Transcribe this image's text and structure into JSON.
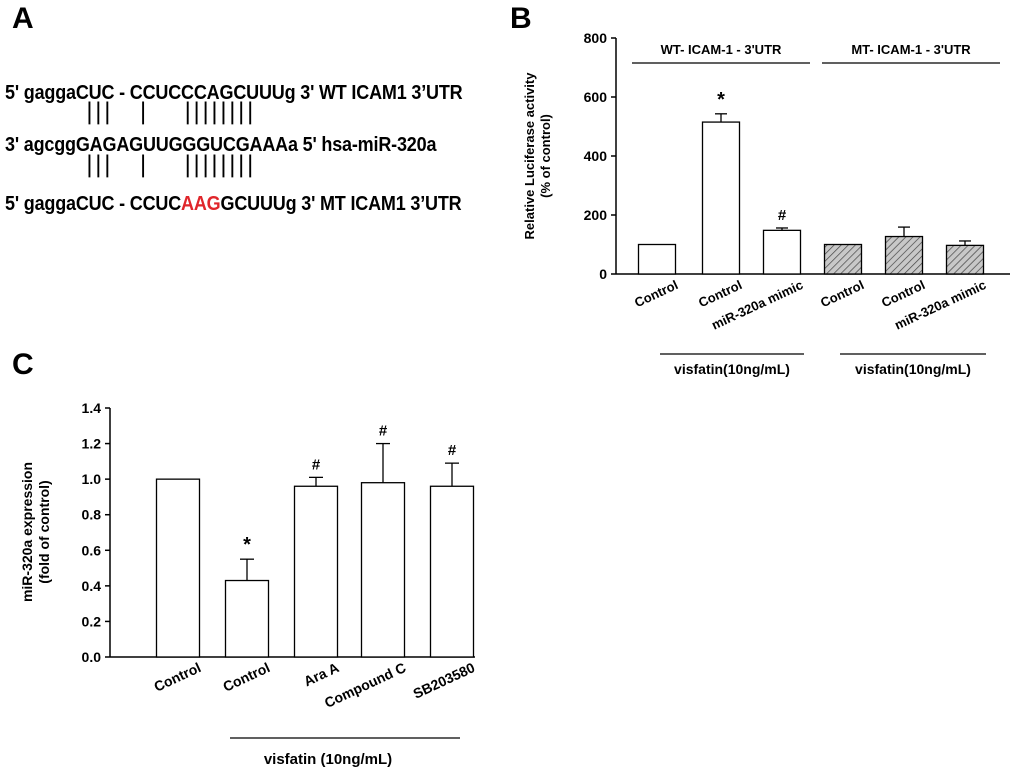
{
  "panels": {
    "a": "A",
    "b": "B",
    "c": "C"
  },
  "sequences": {
    "wt": {
      "prefix": "5'  gaggaCUC - CCUCCCAGCUUUg 3' WT ICAM1 3’UTR"
    },
    "pipes_top": "|||   |    ||||||||",
    "mir": {
      "text": "3' agcggGAGAGUUGGGUCGAAAa 5' hsa-miR-320a"
    },
    "pipes_bottom": "|||   |    ||||||||",
    "mt": {
      "before": "5'  gaggaCUC - CCUC",
      "mut": "AAG",
      "after": "GCUUUg 3' MT ICAM1 3’UTR"
    }
  },
  "colors": {
    "mutation": "#e0262b",
    "hatch": "#c8c8c8"
  },
  "chart_data": [
    {
      "id": "B",
      "type": "bar",
      "ylabel": "Relative Luciferase activity\n(% of control)",
      "ylim": [
        0,
        800
      ],
      "yticks": [
        0,
        200,
        400,
        600,
        800
      ],
      "categories": [
        "Control",
        "Control",
        "miR-320a mimic",
        "Control",
        "Control",
        "miR-320a mimic"
      ],
      "values": [
        100,
        515,
        148,
        100,
        127,
        97
      ],
      "errors": [
        0,
        28,
        8,
        0,
        32,
        15
      ],
      "annotations": [
        "",
        "*",
        "#",
        "",
        "",
        ""
      ],
      "hatched": [
        false,
        false,
        false,
        true,
        true,
        true
      ],
      "group_labels_top": [
        "WT- ICAM-1 - 3'UTR",
        "MT- ICAM-1 - 3'UTR"
      ],
      "group_labels_bottom": [
        "visfatin(10ng/mL)",
        "visfatin(10ng/mL)"
      ]
    },
    {
      "id": "C",
      "type": "bar",
      "ylabel": "miR-320a expression\n(fold of control)",
      "ylim": [
        0,
        1.4
      ],
      "yticks": [
        "0.0",
        "0.2",
        "0.4",
        "0.6",
        "0.8",
        "1.0",
        "1.2",
        "1.4"
      ],
      "categories": [
        "Control",
        "Control",
        "Ara A",
        "Compound C",
        "SB203580"
      ],
      "values": [
        1.0,
        0.43,
        0.96,
        0.98,
        0.96
      ],
      "errors": [
        0,
        0.12,
        0.05,
        0.22,
        0.13
      ],
      "annotations": [
        "",
        "*",
        "#",
        "#",
        "#"
      ],
      "group_label_bottom": "visfatin (10ng/mL)"
    }
  ]
}
